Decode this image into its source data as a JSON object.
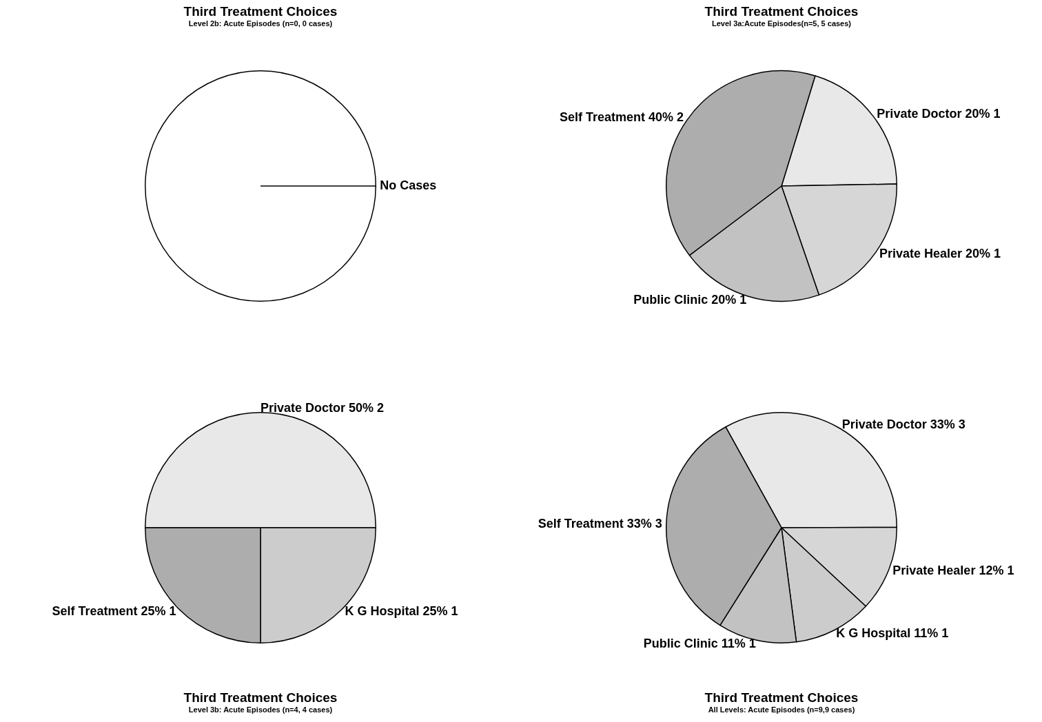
{
  "chart_data": [
    {
      "type": "pie",
      "title": "Third Treatment Choices",
      "subtitle": "Level 2b: Acute Episodes (n=0, 0 cases)",
      "categories": [
        "No Cases"
      ],
      "values": [
        100
      ],
      "colors": [
        "#ffffff"
      ]
    },
    {
      "type": "pie",
      "title": "Third Treatment Choices",
      "subtitle": "Level 3a:Acute Episodes(n=5, 5 cases)",
      "categories": [
        "Private Doctor",
        "Private Healer",
        "Public Clinic",
        "Self Treatment"
      ],
      "values": [
        20,
        20,
        20,
        40
      ],
      "value_labels": [
        "20% 1",
        "20% 1",
        "20% 1",
        "40% 2"
      ],
      "colors": [
        "#e8e8e8",
        "#d6d6d6",
        "#c2c2c2",
        "#adadad"
      ]
    },
    {
      "type": "pie",
      "title": "Third Treatment Choices",
      "subtitle": "Level 3b: Acute Episodes (n=4, 4 cases)",
      "categories": [
        "Private Doctor",
        "K G Hospital",
        "Self Treatment"
      ],
      "values": [
        50,
        25,
        25
      ],
      "value_labels": [
        "50% 2",
        "25% 1",
        "25% 1"
      ],
      "colors": [
        "#e8e8e8",
        "#cccccc",
        "#adadad"
      ]
    },
    {
      "type": "pie",
      "title": "Third Treatment Choices",
      "subtitle": "All Levels: Acute Episodes (n=9,9 cases)",
      "categories": [
        "Private Doctor",
        "Private Healer",
        "K G Hospital",
        "Public Clinic",
        "Self Treatment"
      ],
      "values": [
        33,
        12,
        11,
        11,
        33
      ],
      "value_labels": [
        "33% 3",
        "12% 1",
        "11% 1",
        "11% 1",
        "33% 3"
      ],
      "colors": [
        "#e8e8e8",
        "#d6d6d6",
        "#cccccc",
        "#c2c2c2",
        "#adadad"
      ]
    }
  ]
}
